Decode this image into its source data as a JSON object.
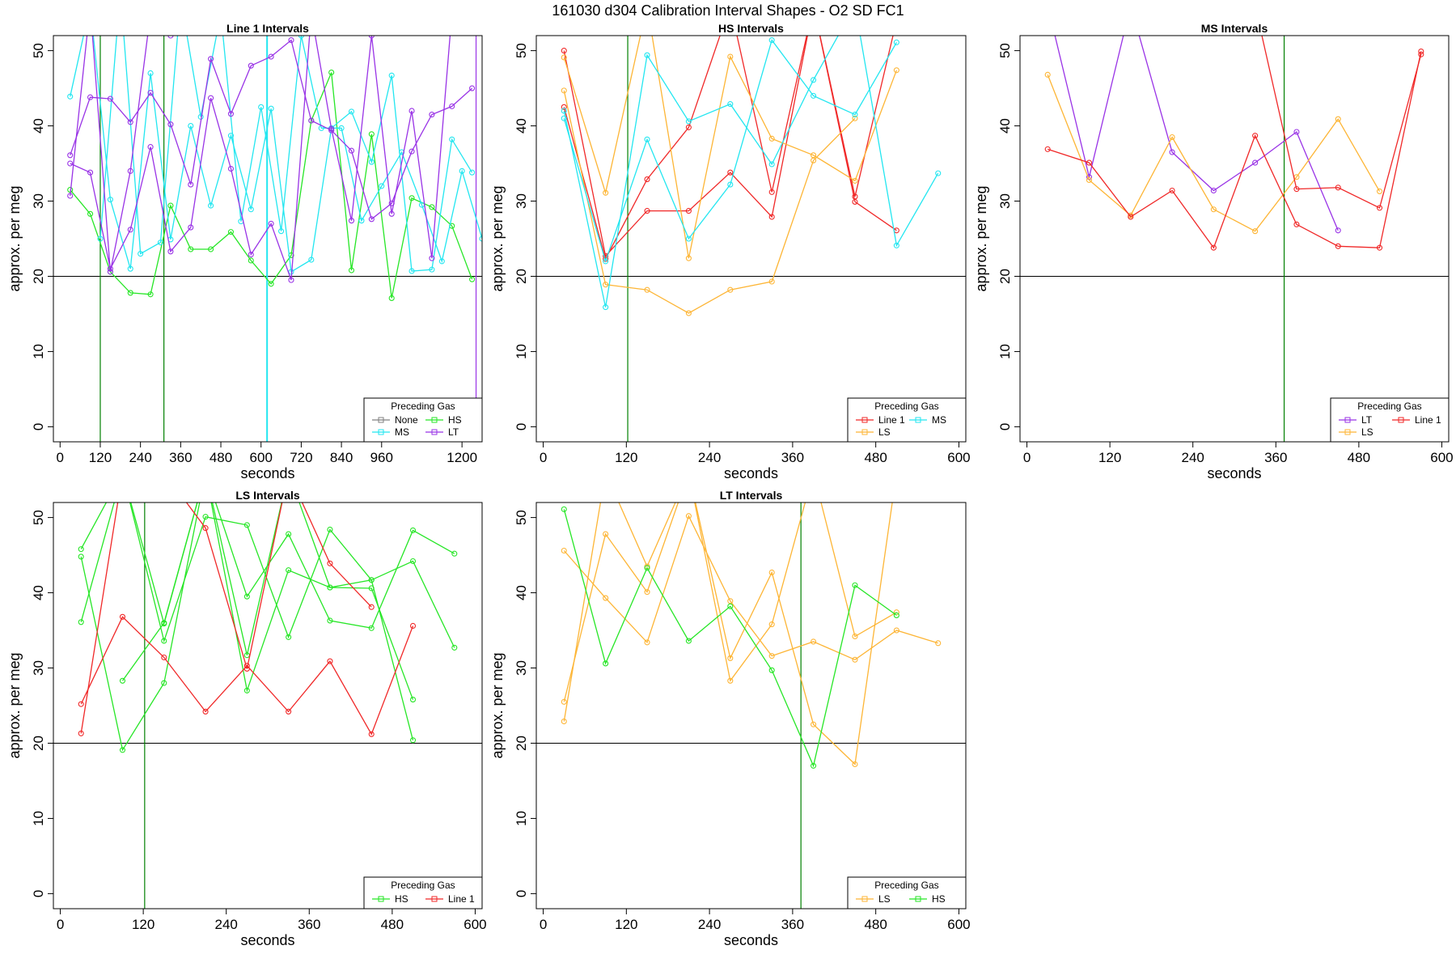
{
  "figure_title": "161030   d304   Calibration Interval Shapes - O2 SD FC1",
  "colors": {
    "None": "#808080",
    "MS": "#22e6f0",
    "HS": "#26e626",
    "LT": "#9933e6",
    "Line 1": "#f02828",
    "LS": "#fdb535",
    "axis": "#000000",
    "hline": "#000000",
    "vline_green": "#008000",
    "vline_cyan": "#22e6f0",
    "vline_purple": "#9933e6"
  },
  "chart_data": [
    {
      "type": "line",
      "title": "Line 1 Intervals",
      "xlabel": "seconds",
      "ylabel": "approx. per meg",
      "xlim": [
        -20,
        1260
      ],
      "ylim": [
        -2,
        52
      ],
      "xticks": [
        0,
        120,
        240,
        360,
        480,
        600,
        720,
        840,
        960,
        1200
      ],
      "yticks": [
        0,
        10,
        20,
        30,
        40,
        50
      ],
      "hline": 20,
      "vlines": [
        {
          "x": 120,
          "color": "vline_green"
        },
        {
          "x": 310,
          "color": "vline_green"
        },
        {
          "x": 618,
          "color": "vline_cyan"
        },
        {
          "x": 1242,
          "color": "vline_purple"
        }
      ],
      "legend": {
        "title": "Preceding Gas",
        "position": "bottom-right",
        "columns": 2,
        "entries": [
          "None",
          "HS",
          "MS",
          "LT"
        ]
      },
      "series": [
        {
          "name": "HS",
          "x": [
            30,
            90,
            150,
            210,
            270,
            330,
            390,
            450,
            510,
            570,
            630,
            690,
            750,
            810,
            870,
            930,
            990,
            1050,
            1110,
            1170,
            1230
          ],
          "y": [
            31.5,
            28.3,
            20.6,
            17.8,
            17.6,
            29.4,
            23.6,
            23.6,
            25.9,
            22.1,
            19,
            22.8,
            40.7,
            47.1,
            20.8,
            38.9,
            17.1,
            30.4,
            29.2,
            26.7,
            19.6
          ]
        },
        {
          "name": "MS",
          "x": [
            30,
            90,
            150,
            210,
            270,
            330,
            390,
            450,
            510,
            570,
            630,
            690,
            750,
            810,
            870,
            930,
            990,
            1050,
            1110,
            1170,
            1230
          ],
          "y": [
            43.9,
            56,
            30.2,
            21,
            47,
            24.9,
            40,
            29.4,
            38.7,
            28.9,
            42.3,
            20.6,
            22.2,
            39.7,
            41.9,
            35.2,
            46.7,
            20.7,
            20.9,
            38.2,
            33.8
          ]
        },
        {
          "name": "MS",
          "x": [
            120,
            180,
            240,
            300,
            360,
            420,
            480,
            540,
            600,
            660,
            720,
            780,
            840,
            900,
            960,
            1020,
            1080,
            1140,
            1200,
            1260
          ],
          "y": [
            25,
            58,
            23,
            24.5,
            57,
            41.2,
            55,
            27.3,
            42.5,
            26,
            52,
            39.7,
            39.7,
            27.4,
            32,
            36.5,
            29.5,
            22,
            34,
            25
          ]
        },
        {
          "name": "LT",
          "x": [
            30,
            90,
            150,
            210,
            270,
            330,
            390,
            450,
            510,
            570,
            630,
            690,
            750,
            810,
            870,
            930,
            990,
            1050,
            1110,
            1170,
            1230
          ],
          "y": [
            36.1,
            43.8,
            43.6,
            40.5,
            44.4,
            40.2,
            32.2,
            48.9,
            41.6,
            48,
            49.2,
            51.4,
            40.7,
            39.4,
            36.7,
            27.6,
            29.7,
            36.6,
            41.5,
            42.6,
            45
          ]
        },
        {
          "name": "LT",
          "x": [
            30,
            90,
            150,
            210,
            270,
            330,
            390,
            450,
            510,
            570,
            630,
            690,
            750,
            810,
            870,
            930,
            990,
            1050,
            1110,
            1170,
            1230
          ],
          "y": [
            35,
            33.8,
            21,
            26.2,
            37.2,
            23.3,
            26.5,
            43.7,
            34.3,
            22.9,
            27,
            19.5,
            55,
            39.6,
            27.4,
            52,
            28.3,
            42,
            22.4,
            55,
            54
          ]
        },
        {
          "name": "LT",
          "x": [
            30,
            90,
            150,
            210,
            270,
            330
          ],
          "y": [
            30.7,
            56,
            20.6,
            34,
            55,
            52
          ]
        }
      ]
    },
    {
      "type": "line",
      "title": "HS Intervals",
      "xlabel": "seconds",
      "ylabel": "approx. per meg",
      "xlim": [
        -10,
        610
      ],
      "ylim": [
        -2,
        52
      ],
      "xticks": [
        0,
        120,
        240,
        360,
        480,
        600
      ],
      "yticks": [
        0,
        10,
        20,
        30,
        40,
        50
      ],
      "hline": 20,
      "vlines": [
        {
          "x": 122,
          "color": "vline_green"
        }
      ],
      "legend": {
        "title": "Preceding Gas",
        "position": "bottom-right",
        "columns": 2,
        "entries": [
          "Line 1",
          "MS",
          "LS"
        ]
      },
      "series": [
        {
          "name": "Line 1",
          "x": [
            30,
            90,
            150,
            210,
            270,
            330,
            390,
            450,
            510
          ],
          "y": [
            50,
            22.7,
            28.7,
            28.7,
            33.8,
            27.9,
            56,
            30.6,
            54
          ]
        },
        {
          "name": "Line 1",
          "x": [
            30,
            90,
            150,
            210,
            270,
            330,
            390,
            450,
            510
          ],
          "y": [
            42.5,
            22.3,
            32.9,
            39.8,
            56,
            31.2,
            56,
            29.9,
            26.1
          ]
        },
        {
          "name": "LS",
          "x": [
            30,
            90,
            150,
            210,
            270,
            330,
            390,
            450,
            510
          ],
          "y": [
            49.1,
            31.1,
            56,
            22.4,
            49.2,
            38.3,
            36.1,
            32.7,
            47.4
          ]
        },
        {
          "name": "LS",
          "x": [
            30,
            90,
            150,
            210,
            270,
            330,
            390,
            450
          ],
          "y": [
            44.7,
            18.9,
            18.2,
            15.1,
            18.2,
            19.3,
            35.4,
            41
          ]
        },
        {
          "name": "MS",
          "x": [
            30,
            90,
            150,
            210,
            270,
            330,
            390,
            450,
            510,
            570
          ],
          "y": [
            42,
            15.9,
            49.4,
            40.6,
            42.9,
            34.9,
            46.1,
            56,
            24.1,
            33.7
          ]
        },
        {
          "name": "MS",
          "x": [
            30,
            90,
            150,
            210,
            270,
            330,
            390,
            450,
            510
          ],
          "y": [
            41,
            22,
            38.2,
            25,
            32.2,
            51.4,
            44,
            41.5,
            51.1
          ]
        }
      ]
    },
    {
      "type": "line",
      "title": "MS Intervals",
      "xlabel": "seconds",
      "ylabel": "approx. per meg",
      "xlim": [
        -10,
        610
      ],
      "ylim": [
        -2,
        52
      ],
      "xticks": [
        0,
        120,
        240,
        360,
        480,
        600
      ],
      "yticks": [
        0,
        10,
        20,
        30,
        40,
        50
      ],
      "hline": 20,
      "vlines": [
        {
          "x": 372,
          "color": "vline_green"
        }
      ],
      "legend": {
        "title": "Preceding Gas",
        "position": "bottom-right",
        "columns": 2,
        "entries": [
          "LT",
          "Line 1",
          "LS"
        ]
      },
      "series": [
        {
          "name": "LT",
          "x": [
            30,
            90,
            150,
            210,
            270,
            330,
            390,
            450
          ],
          "y": [
            56,
            33.2,
            56,
            36.5,
            31.4,
            35.1,
            39.2,
            26.1
          ]
        },
        {
          "name": "LS",
          "x": [
            30,
            90,
            150,
            210,
            270,
            330,
            390,
            450,
            510
          ],
          "y": [
            46.8,
            32.8,
            28.1,
            38.5,
            28.9,
            26,
            33.2,
            40.9,
            31.3
          ]
        },
        {
          "name": "Line 1",
          "x": [
            30,
            90,
            150,
            210,
            270,
            330,
            390,
            450,
            510,
            570
          ],
          "y": [
            36.9,
            35.1,
            27.9,
            31.4,
            23.8,
            38.7,
            26.9,
            24,
            23.8,
            49.9
          ]
        },
        {
          "name": "Line 1",
          "x": [
            330,
            390,
            450,
            510,
            570
          ],
          "y": [
            56,
            31.6,
            31.8,
            29.1,
            49.5
          ]
        }
      ]
    },
    {
      "type": "line",
      "title": "LS Intervals",
      "xlabel": "seconds",
      "ylabel": "approx. per meg",
      "xlim": [
        -10,
        610
      ],
      "ylim": [
        -2,
        52
      ],
      "xticks": [
        0,
        120,
        240,
        360,
        480,
        600
      ],
      "yticks": [
        0,
        10,
        20,
        30,
        40,
        50
      ],
      "hline": 20,
      "vlines": [
        {
          "x": 122,
          "color": "vline_green"
        }
      ],
      "legend": {
        "title": "Preceding Gas",
        "position": "bottom-right",
        "columns": 2,
        "entries": [
          "HS",
          "Line 1"
        ]
      },
      "series": [
        {
          "name": "HS",
          "x": [
            30,
            90,
            150,
            210,
            270,
            330,
            390,
            450,
            510
          ],
          "y": [
            45.8,
            56,
            33.6,
            50.1,
            49,
            34.1,
            48.4,
            41.7,
            20.4
          ]
        },
        {
          "name": "HS",
          "x": [
            30,
            90,
            150,
            210,
            270,
            330,
            390,
            450,
            510
          ],
          "y": [
            36.1,
            56,
            35.9,
            56,
            27,
            43,
            40.7,
            40.6,
            25.8
          ]
        },
        {
          "name": "HS",
          "x": [
            30,
            90,
            150,
            210,
            270,
            330,
            390,
            450,
            510,
            570
          ],
          "y": [
            44.8,
            19.1,
            28,
            56,
            39.5,
            47.8,
            36.3,
            35.3,
            48.3,
            45.2
          ]
        },
        {
          "name": "HS",
          "x": [
            90,
            150,
            210,
            270,
            330,
            390,
            450,
            510,
            570
          ],
          "y": [
            28.3,
            36,
            56,
            31.7,
            56,
            40.7,
            41.7,
            44.2,
            32.7
          ]
        },
        {
          "name": "Line 1",
          "x": [
            30,
            90,
            150,
            210,
            270,
            330,
            390,
            450,
            510
          ],
          "y": [
            25.2,
            36.8,
            31.4,
            24.2,
            30.3,
            24.2,
            30.9,
            21.2,
            35.6
          ]
        },
        {
          "name": "Line 1",
          "x": [
            30,
            90,
            150,
            210,
            270,
            330,
            390,
            450
          ],
          "y": [
            21.3,
            56,
            56,
            48.6,
            29.9,
            56,
            43.9,
            38.1
          ]
        }
      ]
    },
    {
      "type": "line",
      "title": "LT Intervals",
      "xlabel": "seconds",
      "ylabel": "approx. per meg",
      "xlim": [
        -10,
        610
      ],
      "ylim": [
        -2,
        52
      ],
      "xticks": [
        0,
        120,
        240,
        360,
        480,
        600
      ],
      "yticks": [
        0,
        10,
        20,
        30,
        40,
        50
      ],
      "hline": 20,
      "vlines": [
        {
          "x": 372,
          "color": "vline_green"
        }
      ],
      "legend": {
        "title": "Preceding Gas",
        "position": "bottom-right",
        "columns": 2,
        "entries": [
          "LS",
          "HS"
        ]
      },
      "series": [
        {
          "name": "LS",
          "x": [
            30,
            90,
            150,
            210,
            270,
            330,
            390,
            450,
            510,
            570
          ],
          "y": [
            45.6,
            39.3,
            33.4,
            50.2,
            38.9,
            31.6,
            33.5,
            31.1,
            35,
            33.3
          ]
        },
        {
          "name": "LS",
          "x": [
            30,
            90,
            150,
            210,
            270,
            330,
            390,
            450,
            510,
            570
          ],
          "y": [
            25.5,
            47.8,
            40.1,
            56,
            31.3,
            42.7,
            22.5,
            17.2,
            56,
            56
          ]
        },
        {
          "name": "LS",
          "x": [
            30,
            90,
            150,
            210,
            270,
            330,
            390,
            450,
            510
          ],
          "y": [
            22.9,
            56,
            43.5,
            56,
            28.3,
            35.8,
            56,
            34.2,
            37.4
          ]
        },
        {
          "name": "HS",
          "x": [
            30,
            90,
            150,
            210,
            270,
            330,
            390,
            450,
            510
          ],
          "y": [
            51.1,
            30.6,
            43.3,
            33.6,
            38.2,
            29.7,
            17,
            41,
            37
          ]
        }
      ]
    }
  ]
}
